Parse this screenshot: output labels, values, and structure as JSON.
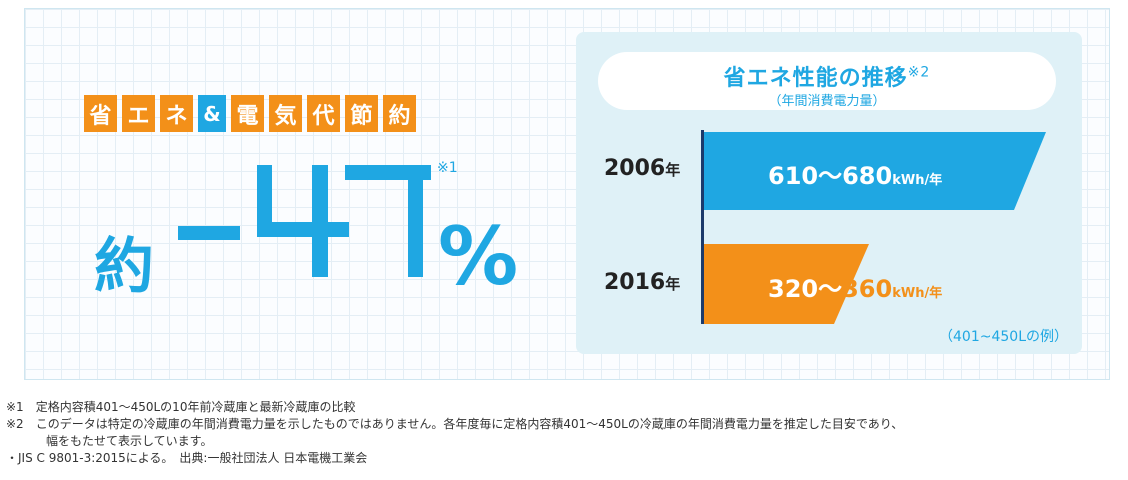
{
  "tagline": [
    "省",
    "エ",
    "ネ",
    "&",
    "電",
    "気",
    "代",
    "節",
    "約"
  ],
  "headline": {
    "prefix": "約",
    "value": "-47",
    "suffix": "%",
    "note": "※1"
  },
  "chart": {
    "title": "省エネ性能の推移",
    "title_note": "※2",
    "subtitle": "（年間消費電力量）",
    "rows": [
      {
        "year": "2006",
        "year_unit": "年",
        "range_text": "610〜680",
        "unit": "kWh/年",
        "color": "#1fa7e2"
      },
      {
        "year": "2016",
        "year_unit": "年",
        "range_low": "320〜",
        "range_high": "360",
        "unit": "kWh/年",
        "color": "#f39019"
      }
    ],
    "example": "（401~450Lの例）"
  },
  "chart_data": {
    "type": "bar",
    "categories": [
      "2006年",
      "2016年"
    ],
    "series": [
      {
        "values": [
          [
            610,
            680
          ],
          [
            320,
            360
          ]
        ]
      }
    ],
    "unit": "kWh/年"
  },
  "notes": {
    "n1": "※1　定格内容積401〜450Lの10年前冷蔵庫と最新冷蔵庫の比較",
    "n2": "※2　このデータは特定の冷蔵庫の年間消費電力量を示したものではありません。各年度毎に定格内容積401〜450Lの冷蔵庫の年間消費電力量を推定した目安であり、",
    "n2b": "幅をもたせて表示しています。",
    "n3": "・JIS C 9801-3:2015による。　出典:一般社団法人 日本電機工業会"
  }
}
